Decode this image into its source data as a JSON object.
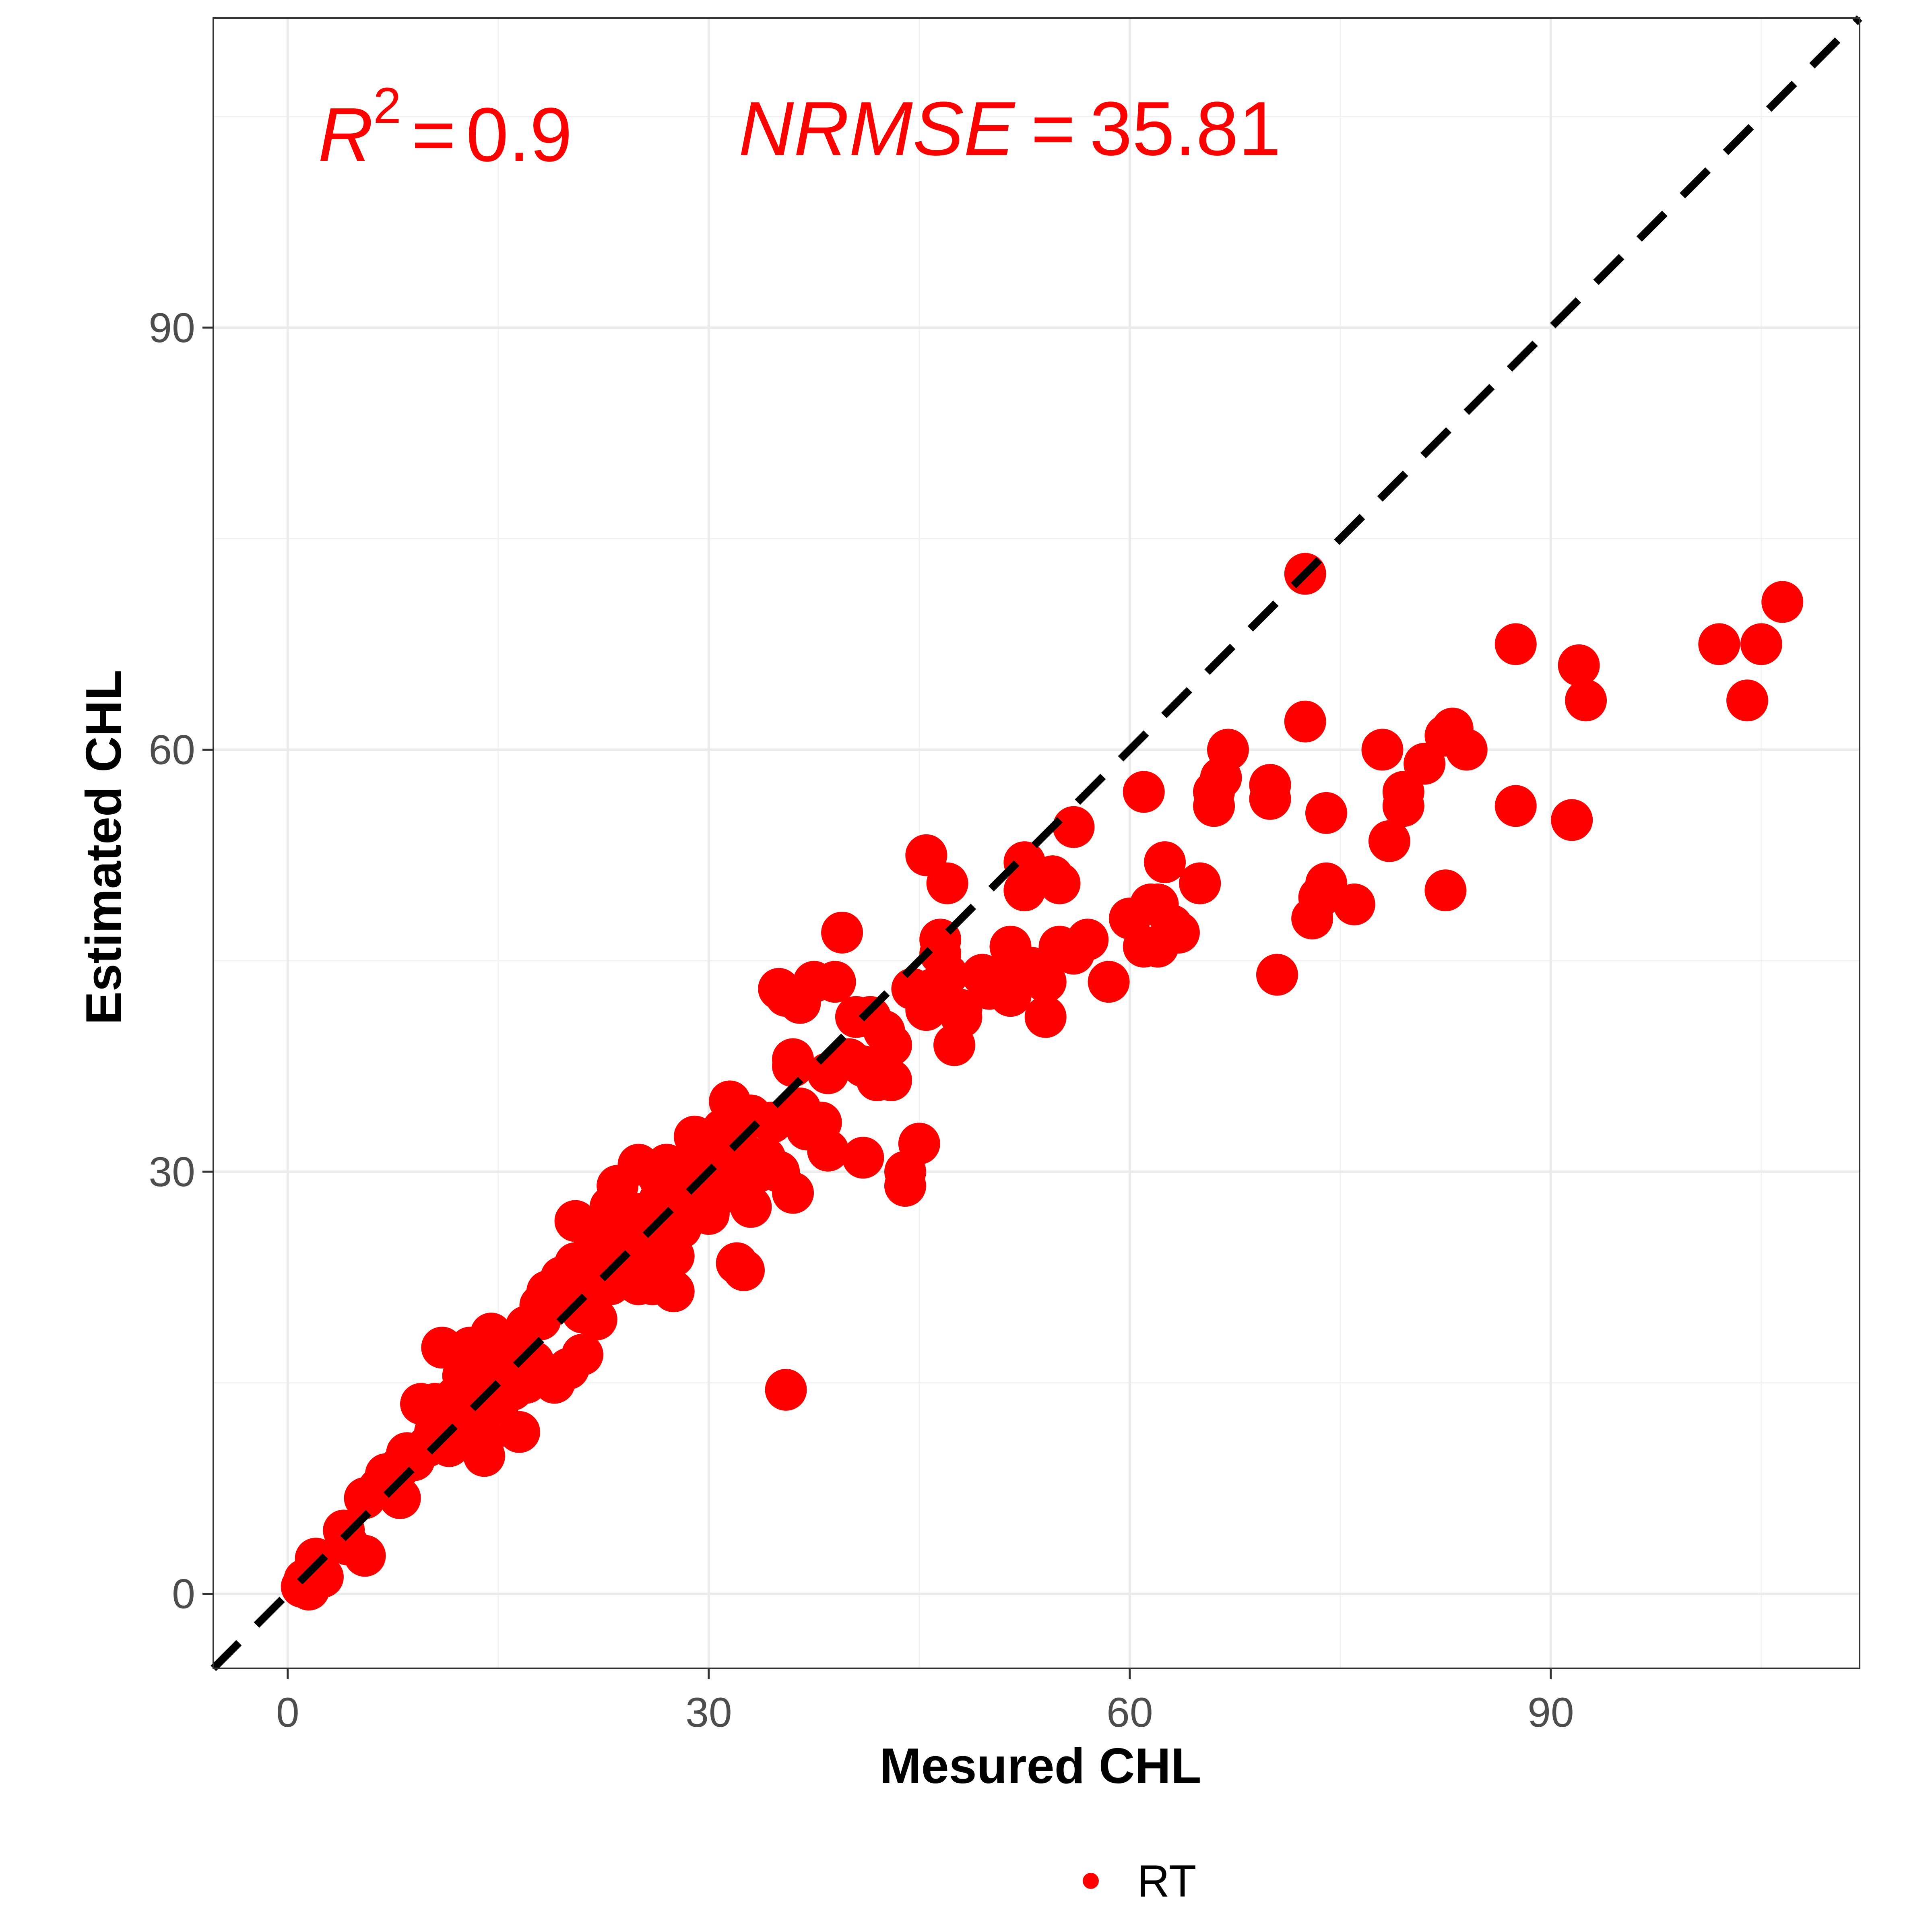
{
  "chart_data": {
    "type": "scatter",
    "xlabel": "Mesured CHL",
    "ylabel": "Estimated CHL",
    "xlim": [
      -5.3,
      112
    ],
    "ylim": [
      -5.3,
      112
    ],
    "xticks": [
      0,
      30,
      60,
      90
    ],
    "yticks": [
      0,
      30,
      60,
      90
    ],
    "xtick_labels": [
      "0",
      "30",
      "60",
      "90"
    ],
    "ytick_labels": [
      "0",
      "30",
      "60",
      "90"
    ],
    "grid": true,
    "legend_position": "bottom",
    "reference_line": {
      "type": "identity",
      "style": "dashed",
      "color": "#000000"
    },
    "annotations": {
      "r2": {
        "symbol": "R",
        "superscript": "2",
        "equals": "=",
        "value": "0.9"
      },
      "nrmse": {
        "symbol": "NRMSE",
        "equals": "=",
        "value": "35.81"
      }
    },
    "series": [
      {
        "name": "RT",
        "color": "#ff0000",
        "points": [
          [
            1,
            0.5
          ],
          [
            1.2,
            1
          ],
          [
            1.5,
            0.3
          ],
          [
            2,
            2.5
          ],
          [
            2.5,
            1.2
          ],
          [
            4,
            4.5
          ],
          [
            4.3,
            3.5
          ],
          [
            5.5,
            2.7
          ],
          [
            5.5,
            6.8
          ],
          [
            6.5,
            7.5
          ],
          [
            7,
            8.5
          ],
          [
            7.5,
            7.8
          ],
          [
            8,
            6.8
          ],
          [
            8,
            9
          ],
          [
            8.5,
            10
          ],
          [
            9,
            9.5
          ],
          [
            9.5,
            13.5
          ],
          [
            10,
            10.5
          ],
          [
            10.5,
            11.5
          ],
          [
            10.5,
            13.5
          ],
          [
            11,
            12.5
          ],
          [
            11,
            17.5
          ],
          [
            11.5,
            10.5
          ],
          [
            11.5,
            12
          ],
          [
            12,
            14
          ],
          [
            12.5,
            13.5
          ],
          [
            12.5,
            15.5
          ],
          [
            13,
            16
          ],
          [
            13,
            17.5
          ],
          [
            13.5,
            12.5
          ],
          [
            13.5,
            14.5
          ],
          [
            14,
            11
          ],
          [
            14,
            9.8
          ],
          [
            14,
            15
          ],
          [
            14.5,
            16.5
          ],
          [
            14.5,
            18.5
          ],
          [
            15,
            13.5
          ],
          [
            15,
            15.5
          ],
          [
            15.5,
            17
          ],
          [
            16,
            14.5
          ],
          [
            16,
            16.8
          ],
          [
            16.5,
            11.5
          ],
          [
            17,
            19
          ],
          [
            17,
            15
          ],
          [
            17.5,
            16.5
          ],
          [
            18,
            19.5
          ],
          [
            18,
            20.5
          ],
          [
            18.5,
            21.5
          ],
          [
            19,
            15
          ],
          [
            19.5,
            22.5
          ],
          [
            20,
            21
          ],
          [
            20,
            16
          ],
          [
            20.5,
            23.5
          ],
          [
            20.5,
            26.5
          ],
          [
            21,
            17
          ],
          [
            21,
            20
          ],
          [
            21.5,
            22.5
          ],
          [
            21.5,
            24
          ],
          [
            22,
            19.5
          ],
          [
            22,
            21.5
          ],
          [
            22.5,
            25.5
          ],
          [
            23,
            22
          ],
          [
            23,
            27.5
          ],
          [
            23.5,
            29
          ],
          [
            24,
            23
          ],
          [
            24,
            25
          ],
          [
            24.5,
            26.5
          ],
          [
            25,
            22
          ],
          [
            25,
            27
          ],
          [
            25,
            30.5
          ],
          [
            25.5,
            24.5
          ],
          [
            26,
            22
          ],
          [
            26,
            26
          ],
          [
            26.5,
            28
          ],
          [
            26.5,
            29.5
          ],
          [
            27,
            25
          ],
          [
            27,
            30.5
          ],
          [
            27.5,
            21.5
          ],
          [
            27.5,
            24
          ],
          [
            28,
            26
          ],
          [
            28,
            29
          ],
          [
            28.5,
            28.5
          ],
          [
            29,
            30
          ],
          [
            29,
            32.5
          ],
          [
            29.5,
            31
          ],
          [
            30,
            29.5
          ],
          [
            30,
            27
          ],
          [
            30.5,
            31.5
          ],
          [
            31,
            28.5
          ],
          [
            31,
            33
          ],
          [
            31.5,
            30
          ],
          [
            31.5,
            35
          ],
          [
            32,
            23.5
          ],
          [
            32,
            32
          ],
          [
            32.5,
            23
          ],
          [
            33,
            27.5
          ],
          [
            33,
            34
          ],
          [
            33.5,
            30
          ],
          [
            34,
            31
          ],
          [
            34.5,
            33.5
          ],
          [
            35,
            30
          ],
          [
            35,
            43
          ],
          [
            35.5,
            42.5
          ],
          [
            35.5,
            14.5
          ],
          [
            36,
            37.5
          ],
          [
            36,
            38
          ],
          [
            36,
            28.5
          ],
          [
            36.5,
            34.5
          ],
          [
            36.5,
            42
          ],
          [
            37,
            33
          ],
          [
            37.5,
            43.5
          ],
          [
            38,
            33.5
          ],
          [
            38.5,
            37
          ],
          [
            38.5,
            31.5
          ],
          [
            39,
            43.5
          ],
          [
            39.5,
            47
          ],
          [
            40,
            38
          ],
          [
            40.5,
            41
          ],
          [
            41,
            37.5
          ],
          [
            41,
            31
          ],
          [
            41.5,
            41
          ],
          [
            42,
            36.5
          ],
          [
            42.5,
            40
          ],
          [
            43,
            39
          ],
          [
            43,
            36.5
          ],
          [
            44,
            30
          ],
          [
            44,
            29
          ],
          [
            44.5,
            43
          ],
          [
            45,
            32
          ],
          [
            45.5,
            52.5
          ],
          [
            45.5,
            41.5
          ],
          [
            46,
            43
          ],
          [
            46.5,
            46.5
          ],
          [
            46.5,
            45.5
          ],
          [
            47,
            50.5
          ],
          [
            47,
            44
          ],
          [
            47.5,
            39
          ],
          [
            48,
            41.5
          ],
          [
            48,
            41
          ],
          [
            49.5,
            44
          ],
          [
            50,
            43
          ],
          [
            51,
            43.5
          ],
          [
            51.5,
            46
          ],
          [
            51.5,
            42.5
          ],
          [
            52,
            44
          ],
          [
            52.5,
            52
          ],
          [
            52.5,
            50
          ],
          [
            53,
            44.5
          ],
          [
            54,
            43.5
          ],
          [
            54,
            41
          ],
          [
            54.5,
            51
          ],
          [
            55,
            50.5
          ],
          [
            55,
            46
          ],
          [
            56,
            45.5
          ],
          [
            56,
            54.5
          ],
          [
            57,
            46.5
          ],
          [
            58.5,
            43.5
          ],
          [
            60,
            48
          ],
          [
            61,
            57
          ],
          [
            61,
            46
          ],
          [
            61.5,
            49
          ],
          [
            62,
            49
          ],
          [
            62,
            46
          ],
          [
            62.5,
            52
          ],
          [
            63,
            47.5
          ],
          [
            63.5,
            47
          ],
          [
            65,
            50.5
          ],
          [
            66,
            57
          ],
          [
            66,
            56
          ],
          [
            66.5,
            58
          ],
          [
            67,
            60
          ],
          [
            70,
            57.5
          ],
          [
            70,
            56.5
          ],
          [
            70.5,
            44
          ],
          [
            72.5,
            72.5
          ],
          [
            72.5,
            62
          ],
          [
            73,
            48
          ],
          [
            73.5,
            49.5
          ],
          [
            74,
            50.5
          ],
          [
            74,
            55.5
          ],
          [
            76,
            49
          ],
          [
            78,
            60
          ],
          [
            78.5,
            53.5
          ],
          [
            79.5,
            57
          ],
          [
            79.5,
            56
          ],
          [
            81,
            59
          ],
          [
            82.5,
            50
          ],
          [
            82.5,
            61
          ],
          [
            83,
            61.5
          ],
          [
            84,
            60
          ],
          [
            87.5,
            67.5
          ],
          [
            87.5,
            56
          ],
          [
            91.5,
            55
          ],
          [
            92,
            66
          ],
          [
            92.5,
            63.5
          ],
          [
            102,
            67.5
          ],
          [
            104,
            63.5
          ],
          [
            105,
            67.5
          ],
          [
            106.5,
            70.5
          ],
          [
            65,
            50.5
          ]
        ]
      }
    ]
  },
  "legend": {
    "label": "RT"
  }
}
